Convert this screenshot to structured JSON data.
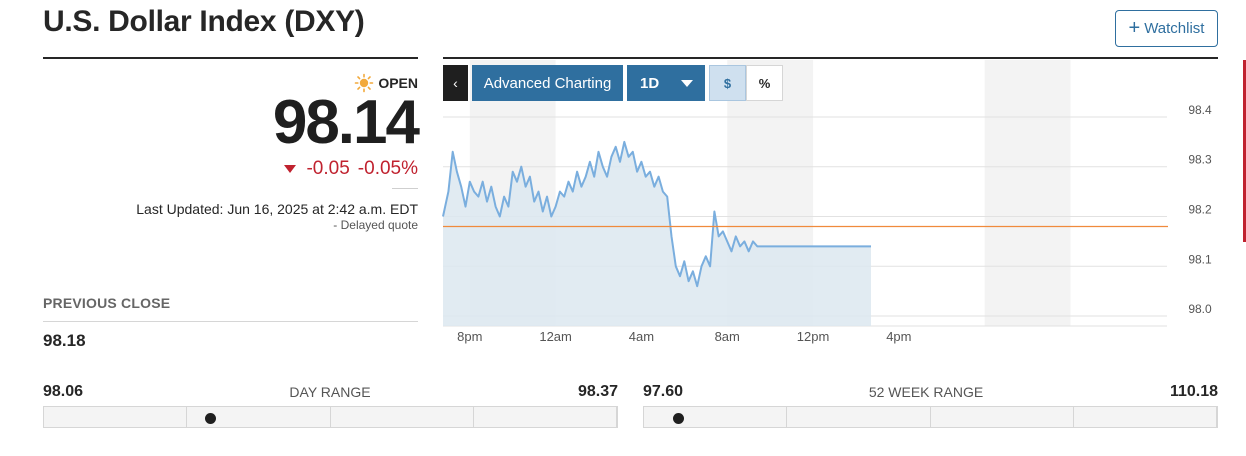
{
  "header": {
    "title": "U.S. Dollar Index (DXY)",
    "watchlist_label": "Watchlist"
  },
  "quote": {
    "status": "OPEN",
    "price": "98.14",
    "change": "-0.05",
    "change_percent": "-0.05%",
    "last_updated": "Last Updated: Jun 16, 2025 at 2:42 a.m. EDT",
    "delayed": "Delayed quote",
    "delayed_prefix": "-",
    "previous_close_label": "PREVIOUS CLOSE",
    "previous_close": "98.18"
  },
  "toolbar": {
    "back_label": "‹",
    "advanced_label": "Advanced Charting",
    "interval_label": "1D",
    "dollar_label": "$",
    "percent_label": "%"
  },
  "day_range": {
    "label": "DAY RANGE",
    "low": "98.06",
    "high": "98.37",
    "position": 0.29
  },
  "week52_range": {
    "label": "52 WEEK RANGE",
    "low": "97.60",
    "high": "110.18",
    "position": 0.06
  },
  "colors": {
    "accent": "#2f6f9f",
    "negative": "#c0222f",
    "line": "#7aaede",
    "area": "#dce7f0",
    "reference": "#f08a3c"
  },
  "chart_data": {
    "type": "area",
    "x_ticks": [
      "8pm",
      "12am",
      "4am",
      "8am",
      "12pm",
      "4pm"
    ],
    "y_ticks": [
      "98.0",
      "98.1",
      "98.2",
      "98.3",
      "98.4"
    ],
    "ylim": [
      97.98,
      98.41
    ],
    "x_hours_range": [
      -17.25,
      16.5
    ],
    "previous_close": 98.18,
    "series": [
      {
        "x_hours": [
          -17.25,
          -17.0,
          -16.8,
          -16.6,
          -16.4,
          -16.2,
          -16.0,
          -15.8,
          -15.6,
          -15.4,
          -15.2,
          -15.0,
          -14.8,
          -14.6,
          -14.4,
          -14.2,
          -14.0,
          -13.8,
          -13.6,
          -13.4,
          -13.2,
          -13.0,
          -12.8,
          -12.6,
          -12.4,
          -12.2,
          -12.0,
          -11.8,
          -11.6,
          -11.4,
          -11.2,
          -11.0,
          -10.8,
          -10.6,
          -10.4,
          -10.2,
          -10.0,
          -9.8,
          -9.6,
          -9.4,
          -9.2,
          -9.0,
          -8.8,
          -8.6,
          -8.4,
          -8.2,
          -8.0,
          -7.8,
          -7.6,
          -7.4,
          -7.2,
          -7.0,
          -6.8,
          -6.6,
          -6.4,
          -6.2,
          -6.0,
          -5.8,
          -5.6,
          -5.4,
          -5.2,
          -5.0,
          -4.8,
          -4.6,
          -4.4,
          -4.2,
          -4.0,
          -3.8,
          -3.6,
          -3.4,
          -3.2,
          -3.0,
          -2.8,
          -2.6,
          -2.4,
          -2.2,
          -2.0,
          -1.8,
          -1.6,
          -1.4,
          -1.2,
          -1.0,
          -0.8,
          -0.6,
          -0.4,
          -0.2,
          0.0,
          0.2,
          0.4,
          0.6,
          0.8,
          1.0,
          1.2,
          1.4,
          1.6,
          1.8,
          2.0,
          2.2,
          2.4,
          2.6,
          2.7
        ],
        "values": [
          98.2,
          98.25,
          98.33,
          98.29,
          98.26,
          98.22,
          98.27,
          98.25,
          98.24,
          98.27,
          98.23,
          98.26,
          98.22,
          98.2,
          98.24,
          98.22,
          98.29,
          98.27,
          98.3,
          98.26,
          98.28,
          98.23,
          98.25,
          98.21,
          98.24,
          98.2,
          98.22,
          98.25,
          98.24,
          98.27,
          98.25,
          98.29,
          98.26,
          98.28,
          98.31,
          98.28,
          98.33,
          98.3,
          98.28,
          98.32,
          98.34,
          98.31,
          98.35,
          98.32,
          98.33,
          98.29,
          98.31,
          98.28,
          98.29,
          98.26,
          98.28,
          98.25,
          98.24,
          98.16,
          98.1,
          98.08,
          98.11,
          98.07,
          98.09,
          98.06,
          98.1,
          98.12,
          98.1,
          98.21,
          98.16,
          98.17,
          98.15,
          98.13,
          98.16,
          98.14,
          98.15,
          98.13,
          98.15,
          98.14,
          98.14,
          98.14,
          98.14,
          98.14,
          98.14,
          98.14,
          98.14,
          98.14,
          98.14,
          98.14,
          98.14,
          98.14,
          98.14,
          98.14,
          98.14,
          98.14,
          98.14,
          98.14,
          98.14,
          98.14,
          98.14,
          98.14,
          98.14,
          98.14,
          98.14,
          98.14,
          98.14
        ]
      }
    ],
    "grid": true
  }
}
